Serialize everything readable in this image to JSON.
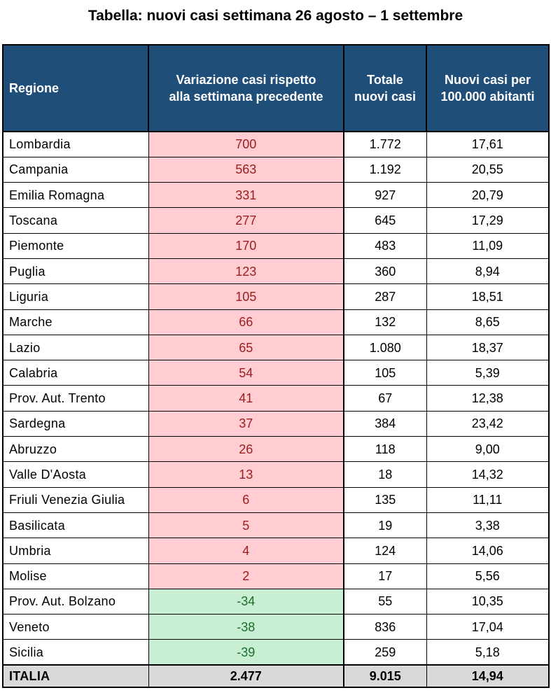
{
  "title": "Tabella: nuovi casi settimana 26 agosto – 1 settembre",
  "headers": {
    "region": "Regione",
    "variation_line1": "Variazione casi rispetto",
    "variation_line2": "alla settimana precedente",
    "total_line1": "Totale",
    "total_line2": "nuovi casi",
    "per100k_line1": "Nuovi casi per",
    "per100k_line2": "100.000 abitanti"
  },
  "colors": {
    "header_bg": "#1f4e79",
    "increase_bg": "#ffcdd2",
    "increase_text": "#9b1c1c",
    "decrease_bg": "#c8efd4",
    "decrease_text": "#1b6e2a",
    "total_bg": "#d9d9d9"
  },
  "rows": [
    {
      "region": "Lombardia",
      "variation": "700",
      "trend": "up",
      "total": "1.772",
      "per100k": "17,61"
    },
    {
      "region": "Campania",
      "variation": "563",
      "trend": "up",
      "total": "1.192",
      "per100k": "20,55"
    },
    {
      "region": "Emilia Romagna",
      "variation": "331",
      "trend": "up",
      "total": "927",
      "per100k": "20,79"
    },
    {
      "region": "Toscana",
      "variation": "277",
      "trend": "up",
      "total": "645",
      "per100k": "17,29"
    },
    {
      "region": "Piemonte",
      "variation": "170",
      "trend": "up",
      "total": "483",
      "per100k": "11,09"
    },
    {
      "region": "Puglia",
      "variation": "123",
      "trend": "up",
      "total": "360",
      "per100k": "8,94"
    },
    {
      "region": "Liguria",
      "variation": "105",
      "trend": "up",
      "total": "287",
      "per100k": "18,51"
    },
    {
      "region": "Marche",
      "variation": "66",
      "trend": "up",
      "total": "132",
      "per100k": "8,65"
    },
    {
      "region": "Lazio",
      "variation": "65",
      "trend": "up",
      "total": "1.080",
      "per100k": "18,37"
    },
    {
      "region": "Calabria",
      "variation": "54",
      "trend": "up",
      "total": "105",
      "per100k": "5,39"
    },
    {
      "region": "Prov. Aut. Trento",
      "variation": "41",
      "trend": "up",
      "total": "67",
      "per100k": "12,38"
    },
    {
      "region": "Sardegna",
      "variation": "37",
      "trend": "up",
      "total": "384",
      "per100k": "23,42"
    },
    {
      "region": "Abruzzo",
      "variation": "26",
      "trend": "up",
      "total": "118",
      "per100k": "9,00"
    },
    {
      "region": "Valle D'Aosta",
      "variation": "13",
      "trend": "up",
      "total": "18",
      "per100k": "14,32"
    },
    {
      "region": "Friuli Venezia Giulia",
      "variation": "6",
      "trend": "up",
      "total": "135",
      "per100k": "11,11"
    },
    {
      "region": "Basilicata",
      "variation": "5",
      "trend": "up",
      "total": "19",
      "per100k": "3,38"
    },
    {
      "region": "Umbria",
      "variation": "4",
      "trend": "up",
      "total": "124",
      "per100k": "14,06"
    },
    {
      "region": "Molise",
      "variation": "2",
      "trend": "up",
      "total": "17",
      "per100k": "5,56"
    },
    {
      "region": "Prov. Aut. Bolzano",
      "variation": "-34",
      "trend": "down",
      "total": "55",
      "per100k": "10,35"
    },
    {
      "region": "Veneto",
      "variation": "-38",
      "trend": "down",
      "total": "836",
      "per100k": "17,04"
    },
    {
      "region": "Sicilia",
      "variation": "-39",
      "trend": "down",
      "total": "259",
      "per100k": "5,18"
    }
  ],
  "totals": {
    "region": "ITALIA",
    "variation": "2.477",
    "total": "9.015",
    "per100k": "14,94"
  }
}
